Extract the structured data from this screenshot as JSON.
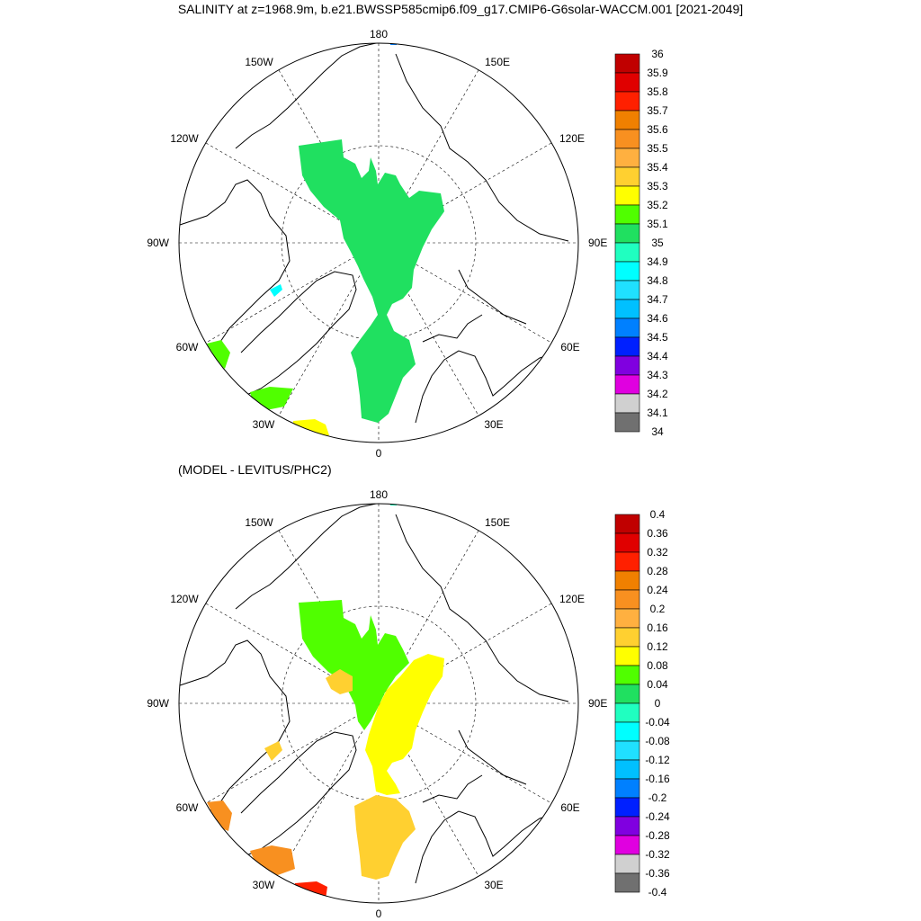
{
  "title": "SALINITY at z=1968.9m, b.e21.BWSSP585cmip6.f09_g17.CMIP6-G6solar-WACCM.001 [2021-2049]",
  "subtitle": "(MODEL - LEVITUS/PHC2)",
  "longitude_labels": {
    "top": "180",
    "bottom": "0",
    "left": "90W",
    "right": "90E",
    "upper_left_1": "150W",
    "upper_left_2": "120W",
    "upper_right_1": "150E",
    "upper_right_2": "120E",
    "lower_left_1": "60W",
    "lower_left_2": "30W",
    "lower_right_1": "60E",
    "lower_right_2": "30E"
  },
  "colorbar_top": {
    "labels": [
      "36",
      "35.9",
      "35.8",
      "35.7",
      "35.6",
      "35.5",
      "35.4",
      "35.3",
      "35.2",
      "35.1",
      "35",
      "34.9",
      "34.8",
      "34.7",
      "34.6",
      "34.5",
      "34.4",
      "34.3",
      "34.2",
      "34.1",
      "34"
    ],
    "colors": [
      "#c00000",
      "#e00000",
      "#ff2000",
      "#f08000",
      "#f89020",
      "#ffb040",
      "#ffd030",
      "#ffff00",
      "#50ff00",
      "#20e060",
      "#20ffc0",
      "#00ffff",
      "#20e0ff",
      "#00c0ff",
      "#0080ff",
      "#0020ff",
      "#8000e0",
      "#e000e0",
      "#d0d0d0",
      "#707070"
    ]
  },
  "colorbar_bottom": {
    "labels": [
      "0.4",
      "0.36",
      "0.32",
      "0.28",
      "0.24",
      "0.2",
      "0.16",
      "0.12",
      "0.08",
      "0.04",
      "0",
      "-0.04",
      "-0.08",
      "-0.12",
      "-0.16",
      "-0.2",
      "-0.24",
      "-0.28",
      "-0.32",
      "-0.36",
      "-0.4"
    ],
    "colors": [
      "#c00000",
      "#e00000",
      "#ff2000",
      "#f08000",
      "#f89020",
      "#ffb040",
      "#ffd030",
      "#ffff00",
      "#50ff00",
      "#20e060",
      "#20ffc0",
      "#00ffff",
      "#20e0ff",
      "#00c0ff",
      "#0080ff",
      "#0020ff",
      "#8000e0",
      "#e000e0",
      "#d0d0d0",
      "#707070"
    ]
  },
  "fields": {
    "top": {
      "main": "#20e060",
      "green": "#50ff00",
      "yellow": "#ffff00",
      "cyan": "#00ffff",
      "blue": "#0080ff"
    },
    "bottom": {
      "green": "#50ff00",
      "yellow": "#ffff00",
      "lightorange": "#ffd030",
      "orange": "#f89020",
      "red": "#ff2000",
      "cyan": "#20ffc0"
    }
  }
}
